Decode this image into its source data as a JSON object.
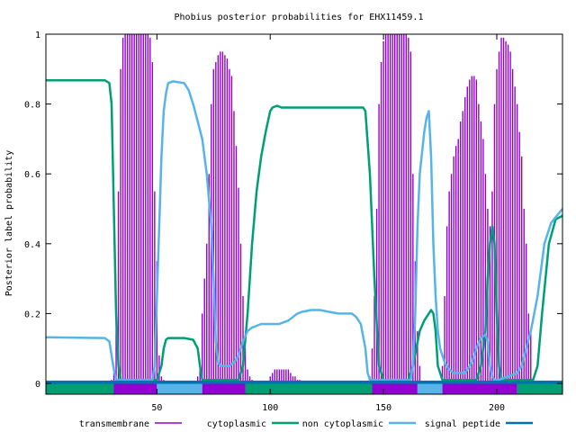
{
  "chart_data": {
    "type": "line",
    "title": "Phobius posterior probabilities for EHX11459.1",
    "xlabel": "",
    "ylabel": "Posterior label probability",
    "xlim": [
      1,
      229
    ],
    "ylim": [
      0,
      1
    ],
    "x_ticks": [
      50,
      100,
      150,
      200
    ],
    "y_ticks": [
      0,
      0.2,
      0.4,
      0.6,
      0.8,
      1
    ],
    "y_tick_labels": [
      "0",
      "0.2",
      "0.4",
      "0.6",
      "0.8",
      "1"
    ],
    "legend_placement": "bottom",
    "series": [
      {
        "name": "transmembrane",
        "color": "#9400d3",
        "style": "impulses",
        "points": [
          [
            28,
            0
          ],
          [
            30,
            0.01
          ],
          [
            31,
            0.03
          ],
          [
            32,
            0.18
          ],
          [
            33,
            0.55
          ],
          [
            34,
            0.9
          ],
          [
            35,
            0.99
          ],
          [
            36,
            1
          ],
          [
            37,
            1
          ],
          [
            38,
            1
          ],
          [
            39,
            1
          ],
          [
            40,
            1
          ],
          [
            41,
            1
          ],
          [
            42,
            1
          ],
          [
            43,
            1
          ],
          [
            44,
            1
          ],
          [
            45,
            1
          ],
          [
            46,
            1
          ],
          [
            47,
            0.99
          ],
          [
            48,
            0.92
          ],
          [
            49,
            0.55
          ],
          [
            50,
            0.35
          ],
          [
            51,
            0.08
          ],
          [
            52,
            0.02
          ],
          [
            53,
            0.01
          ],
          [
            68,
            0.02
          ],
          [
            69,
            0.05
          ],
          [
            70,
            0.2
          ],
          [
            71,
            0.3
          ],
          [
            72,
            0.4
          ],
          [
            73,
            0.6
          ],
          [
            74,
            0.8
          ],
          [
            75,
            0.9
          ],
          [
            76,
            0.92
          ],
          [
            77,
            0.94
          ],
          [
            78,
            0.95
          ],
          [
            79,
            0.95
          ],
          [
            80,
            0.94
          ],
          [
            81,
            0.93
          ],
          [
            82,
            0.9
          ],
          [
            83,
            0.88
          ],
          [
            84,
            0.78
          ],
          [
            85,
            0.68
          ],
          [
            86,
            0.56
          ],
          [
            87,
            0.4
          ],
          [
            88,
            0.25
          ],
          [
            89,
            0.1
          ],
          [
            90,
            0.04
          ],
          [
            91,
            0.02
          ],
          [
            92,
            0.01
          ],
          [
            100,
            0.02
          ],
          [
            101,
            0.03
          ],
          [
            102,
            0.04
          ],
          [
            103,
            0.04
          ],
          [
            104,
            0.04
          ],
          [
            105,
            0.04
          ],
          [
            106,
            0.04
          ],
          [
            107,
            0.04
          ],
          [
            108,
            0.04
          ],
          [
            109,
            0.03
          ],
          [
            110,
            0.02
          ],
          [
            111,
            0.02
          ],
          [
            112,
            0.01
          ],
          [
            113,
            0.01
          ],
          [
            144,
            0.02
          ],
          [
            145,
            0.1
          ],
          [
            146,
            0.25
          ],
          [
            147,
            0.5
          ],
          [
            148,
            0.8
          ],
          [
            149,
            0.92
          ],
          [
            150,
            0.98
          ],
          [
            151,
            1
          ],
          [
            152,
            1
          ],
          [
            153,
            1
          ],
          [
            154,
            1
          ],
          [
            155,
            1
          ],
          [
            156,
            1
          ],
          [
            157,
            1
          ],
          [
            158,
            1
          ],
          [
            159,
            1
          ],
          [
            160,
            1
          ],
          [
            161,
            0.99
          ],
          [
            162,
            0.95
          ],
          [
            163,
            0.6
          ],
          [
            164,
            0.35
          ],
          [
            165,
            0.15
          ],
          [
            166,
            0.05
          ],
          [
            176,
            0.05
          ],
          [
            177,
            0.25
          ],
          [
            178,
            0.45
          ],
          [
            179,
            0.55
          ],
          [
            180,
            0.6
          ],
          [
            181,
            0.65
          ],
          [
            182,
            0.68
          ],
          [
            183,
            0.7
          ],
          [
            184,
            0.75
          ],
          [
            185,
            0.78
          ],
          [
            186,
            0.82
          ],
          [
            187,
            0.85
          ],
          [
            188,
            0.87
          ],
          [
            189,
            0.88
          ],
          [
            190,
            0.88
          ],
          [
            191,
            0.87
          ],
          [
            192,
            0.8
          ],
          [
            193,
            0.75
          ],
          [
            194,
            0.7
          ],
          [
            195,
            0.6
          ],
          [
            196,
            0.5
          ],
          [
            197,
            0.45
          ],
          [
            198,
            0.55
          ],
          [
            199,
            0.8
          ],
          [
            200,
            0.9
          ],
          [
            201,
            0.95
          ],
          [
            202,
            0.99
          ],
          [
            203,
            0.99
          ],
          [
            204,
            0.98
          ],
          [
            205,
            0.97
          ],
          [
            206,
            0.95
          ],
          [
            207,
            0.9
          ],
          [
            208,
            0.85
          ],
          [
            209,
            0.8
          ],
          [
            210,
            0.72
          ],
          [
            211,
            0.65
          ],
          [
            212,
            0.5
          ],
          [
            213,
            0.4
          ],
          [
            214,
            0.2
          ],
          [
            215,
            0.15
          ]
        ]
      },
      {
        "name": "cytoplasmic",
        "color": "#009e73",
        "style": "lines",
        "points": [
          [
            1,
            0.868
          ],
          [
            27,
            0.868
          ],
          [
            29,
            0.86
          ],
          [
            30,
            0.8
          ],
          [
            31,
            0.5
          ],
          [
            32,
            0.2
          ],
          [
            33,
            0.05
          ],
          [
            34,
            0.01
          ],
          [
            50,
            0.01
          ],
          [
            52,
            0.05
          ],
          [
            53,
            0.1
          ],
          [
            54,
            0.125
          ],
          [
            55,
            0.13
          ],
          [
            62,
            0.13
          ],
          [
            66,
            0.125
          ],
          [
            68,
            0.1
          ],
          [
            69,
            0.05
          ],
          [
            70,
            0.01
          ],
          [
            86,
            0.01
          ],
          [
            88,
            0.05
          ],
          [
            90,
            0.2
          ],
          [
            92,
            0.4
          ],
          [
            94,
            0.55
          ],
          [
            96,
            0.65
          ],
          [
            98,
            0.72
          ],
          [
            100,
            0.78
          ],
          [
            101,
            0.79
          ],
          [
            103,
            0.795
          ],
          [
            105,
            0.79
          ],
          [
            141,
            0.79
          ],
          [
            142,
            0.78
          ],
          [
            144,
            0.6
          ],
          [
            146,
            0.3
          ],
          [
            148,
            0.05
          ],
          [
            150,
            0.01
          ],
          [
            161,
            0.01
          ],
          [
            163,
            0.05
          ],
          [
            166,
            0.15
          ],
          [
            168,
            0.18
          ],
          [
            170,
            0.2
          ],
          [
            171,
            0.21
          ],
          [
            172,
            0.2
          ],
          [
            173,
            0.15
          ],
          [
            174,
            0.05
          ],
          [
            176,
            0.01
          ],
          [
            191,
            0.01
          ],
          [
            193,
            0.05
          ],
          [
            195,
            0.15
          ],
          [
            196,
            0.3
          ],
          [
            197,
            0.4
          ],
          [
            198,
            0.45
          ],
          [
            199,
            0.4
          ],
          [
            200,
            0.2
          ],
          [
            201,
            0.05
          ],
          [
            202,
            0.01
          ],
          [
            216,
            0.01
          ],
          [
            218,
            0.05
          ],
          [
            220,
            0.2
          ],
          [
            223,
            0.4
          ],
          [
            226,
            0.47
          ],
          [
            229,
            0.48
          ]
        ]
      },
      {
        "name": "non cytoplasmic",
        "color": "#56b4e9",
        "style": "lines",
        "points": [
          [
            1,
            0.132
          ],
          [
            27,
            0.13
          ],
          [
            29,
            0.12
          ],
          [
            30,
            0.08
          ],
          [
            31,
            0.04
          ],
          [
            32,
            0.01
          ],
          [
            48,
            0.01
          ],
          [
            49,
            0.05
          ],
          [
            50,
            0.25
          ],
          [
            51,
            0.45
          ],
          [
            52,
            0.65
          ],
          [
            53,
            0.78
          ],
          [
            54,
            0.83
          ],
          [
            55,
            0.86
          ],
          [
            57,
            0.865
          ],
          [
            62,
            0.86
          ],
          [
            64,
            0.84
          ],
          [
            66,
            0.8
          ],
          [
            68,
            0.75
          ],
          [
            70,
            0.7
          ],
          [
            72,
            0.6
          ],
          [
            74,
            0.45
          ],
          [
            75,
            0.3
          ],
          [
            76,
            0.12
          ],
          [
            77,
            0.06
          ],
          [
            78,
            0.05
          ],
          [
            82,
            0.05
          ],
          [
            84,
            0.06
          ],
          [
            86,
            0.08
          ],
          [
            88,
            0.12
          ],
          [
            90,
            0.15
          ],
          [
            92,
            0.16
          ],
          [
            94,
            0.165
          ],
          [
            96,
            0.17
          ],
          [
            104,
            0.17
          ],
          [
            106,
            0.175
          ],
          [
            108,
            0.18
          ],
          [
            110,
            0.19
          ],
          [
            112,
            0.2
          ],
          [
            114,
            0.205
          ],
          [
            118,
            0.21
          ],
          [
            122,
            0.21
          ],
          [
            126,
            0.205
          ],
          [
            130,
            0.2
          ],
          [
            136,
            0.2
          ],
          [
            138,
            0.19
          ],
          [
            140,
            0.17
          ],
          [
            142,
            0.1
          ],
          [
            143,
            0.03
          ],
          [
            144,
            0.01
          ],
          [
            162,
            0.01
          ],
          [
            163,
            0.05
          ],
          [
            164,
            0.2
          ],
          [
            165,
            0.45
          ],
          [
            166,
            0.6
          ],
          [
            167,
            0.66
          ],
          [
            168,
            0.72
          ],
          [
            169,
            0.76
          ],
          [
            170,
            0.78
          ],
          [
            171,
            0.65
          ],
          [
            172,
            0.4
          ],
          [
            173,
            0.25
          ],
          [
            174,
            0.15
          ],
          [
            175,
            0.1
          ],
          [
            177,
            0.06
          ],
          [
            179,
            0.04
          ],
          [
            181,
            0.03
          ],
          [
            186,
            0.03
          ],
          [
            189,
            0.06
          ],
          [
            191,
            0.1
          ],
          [
            193,
            0.13
          ],
          [
            195,
            0.14
          ],
          [
            196,
            0.12
          ],
          [
            197,
            0.05
          ],
          [
            198,
            0.02
          ],
          [
            199,
            0.01
          ],
          [
            201,
            0.01
          ],
          [
            205,
            0.02
          ],
          [
            209,
            0.03
          ],
          [
            211,
            0.05
          ],
          [
            213,
            0.1
          ],
          [
            215,
            0.15
          ],
          [
            218,
            0.25
          ],
          [
            221,
            0.4
          ],
          [
            224,
            0.46
          ],
          [
            229,
            0.5
          ]
        ]
      },
      {
        "name": "signal peptide",
        "color": "#0072b2",
        "style": "lines",
        "points": [
          [
            1,
            0.005
          ],
          [
            229,
            0.005
          ]
        ]
      }
    ],
    "topology_bar": [
      {
        "start": 1,
        "end": 31,
        "label": "cytoplasmic",
        "color": "#009e73"
      },
      {
        "start": 31,
        "end": 50,
        "label": "transmembrane",
        "color": "#9400d3"
      },
      {
        "start": 50,
        "end": 70,
        "label": "non cytoplasmic",
        "color": "#56b4e9"
      },
      {
        "start": 70,
        "end": 89,
        "label": "transmembrane",
        "color": "#9400d3"
      },
      {
        "start": 89,
        "end": 145,
        "label": "cytoplasmic",
        "color": "#009e73"
      },
      {
        "start": 145,
        "end": 165,
        "label": "transmembrane",
        "color": "#9400d3"
      },
      {
        "start": 165,
        "end": 176,
        "label": "non cytoplasmic",
        "color": "#56b4e9"
      },
      {
        "start": 176,
        "end": 209,
        "label": "transmembrane",
        "color": "#9400d3"
      },
      {
        "start": 209,
        "end": 229,
        "label": "cytoplasmic",
        "color": "#009e73"
      }
    ]
  }
}
